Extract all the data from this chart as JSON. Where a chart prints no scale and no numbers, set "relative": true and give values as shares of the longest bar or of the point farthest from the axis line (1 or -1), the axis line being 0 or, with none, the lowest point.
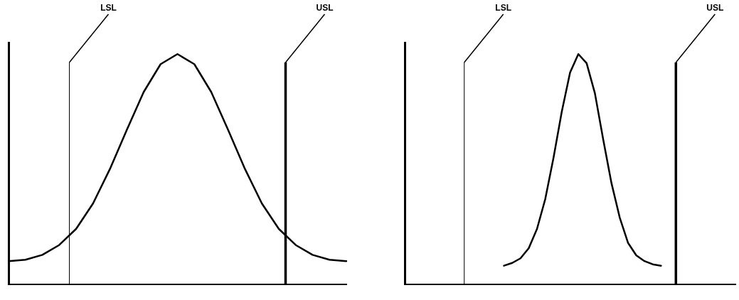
{
  "chart_data": [
    {
      "type": "line",
      "relative": true,
      "grid": false,
      "legend": false,
      "marker": "none",
      "line_style": "solid",
      "categories": [
        null,
        null,
        null,
        null,
        null,
        null,
        null,
        null,
        null,
        null,
        null,
        null,
        null,
        null,
        null,
        null,
        null,
        null,
        null,
        null,
        null
      ],
      "series": [
        {
          "color": "#000000",
          "values": [
            0.1,
            0.106,
            0.127,
            0.17,
            0.24,
            0.35,
            0.5,
            0.67,
            0.835,
            0.956,
            1.0,
            0.956,
            0.835,
            0.67,
            0.5,
            0.35,
            0.24,
            0.17,
            0.127,
            0.106,
            0.1
          ]
        }
      ],
      "annotations": [
        "LSL",
        "USL"
      ]
    },
    {
      "type": "line",
      "relative": true,
      "grid": false,
      "legend": false,
      "marker": "none",
      "line_style": "solid",
      "categories": [
        null,
        null,
        null,
        null,
        null,
        null,
        null,
        null,
        null,
        null,
        null,
        null,
        null,
        null,
        null,
        null,
        null,
        null,
        null,
        null,
        null,
        null,
        null,
        null,
        null,
        null,
        null,
        null,
        null,
        null,
        null,
        null,
        null,
        null,
        null,
        null,
        null,
        null,
        null,
        null,
        null
      ],
      "series": [
        {
          "color": "#000000",
          "values": [
            null,
            null,
            null,
            null,
            null,
            null,
            null,
            null,
            null,
            null,
            null,
            null,
            0.08,
            0.092,
            0.112,
            0.156,
            0.24,
            0.37,
            0.55,
            0.75,
            0.92,
            1.0,
            0.96,
            0.83,
            0.63,
            0.44,
            0.29,
            0.18,
            0.125,
            0.1,
            0.086,
            0.08,
            null,
            null,
            null,
            null,
            null,
            null,
            null,
            null,
            null
          ]
        }
      ],
      "annotations": [
        "LSL",
        "USL"
      ]
    }
  ]
}
